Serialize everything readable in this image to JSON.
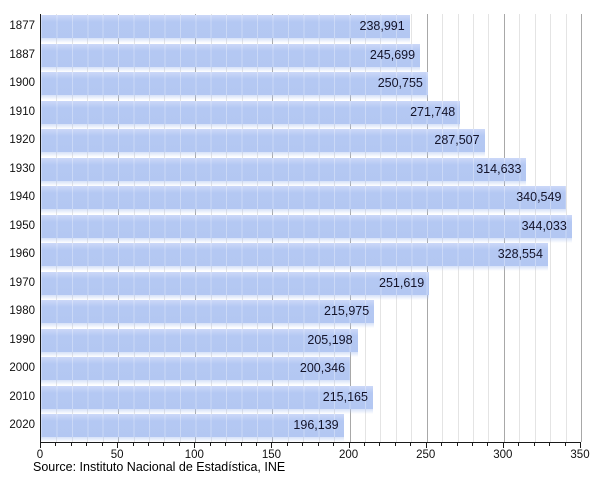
{
  "chart_data": {
    "type": "bar",
    "orientation": "horizontal",
    "title": "",
    "xlabel": "",
    "ylabel": "",
    "categories": [
      "1877",
      "1887",
      "1900",
      "1910",
      "1920",
      "1930",
      "1940",
      "1950",
      "1960",
      "1970",
      "1980",
      "1990",
      "2000",
      "2010",
      "2020"
    ],
    "values": [
      238991,
      245699,
      250755,
      271748,
      287507,
      314633,
      340549,
      344033,
      328554,
      251619,
      215975,
      205198,
      200346,
      215165,
      196139
    ],
    "value_labels": [
      "238,991",
      "245,699",
      "250,755",
      "271,748",
      "287,507",
      "314,633",
      "340,549",
      "344,033",
      "328,554",
      "251,619",
      "215,975",
      "205,198",
      "200,346",
      "215,165",
      "196,139"
    ],
    "axis_unit_divisor": 1000,
    "xlim": [
      0,
      350
    ],
    "x_major_ticks": [
      0,
      50,
      100,
      150,
      200,
      250,
      300,
      350
    ],
    "x_minor_step": 10,
    "grid": true,
    "legend": "none",
    "source_note": "Source: Instituto Nacional de Estadística, INE",
    "colors": {
      "bar": "#b4c8f3",
      "bar_highlight": "#ccd8f8",
      "value_text": "#14142a",
      "grid_minor": "#e4e4e4",
      "grid_major": "#a8a8a8",
      "axis": "#1a1a1a",
      "background": "#ffffff"
    }
  }
}
